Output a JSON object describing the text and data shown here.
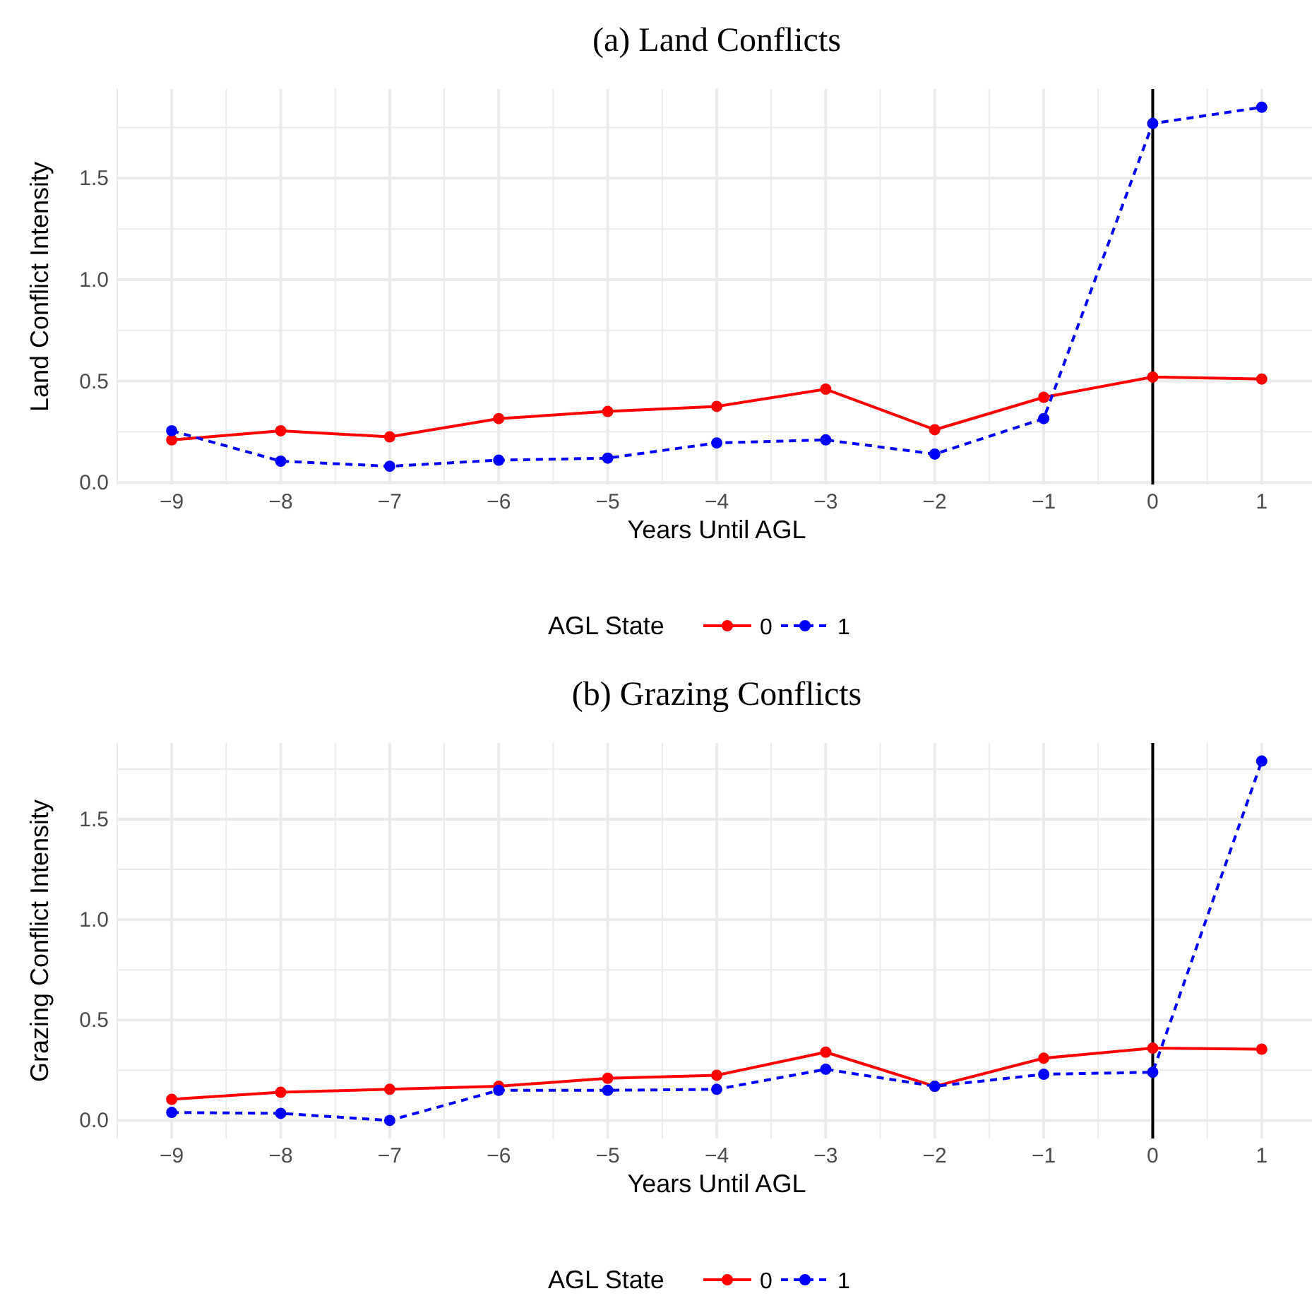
{
  "chart_data": [
    {
      "type": "line",
      "title": "(a) Land Conflicts",
      "xlabel": "Years Until AGL",
      "ylabel": "Land Conflict Intensity",
      "legend_title": "AGL State",
      "legend": "bottom",
      "grid": true,
      "marker": "circle",
      "x": [
        -9,
        -8,
        -7,
        -6,
        -5,
        -4,
        -3,
        -2,
        -1,
        0,
        1
      ],
      "xlim": [
        -9.5,
        1.5
      ],
      "xticks": [
        -9,
        -8,
        -7,
        -6,
        -5,
        -4,
        -3,
        -2,
        -1,
        0,
        1,
        {
          "value": -9.5,
          "label": null
        },
        {
          "value": -8.5,
          "label": null
        },
        {
          "value": -7.5,
          "label": null
        },
        {
          "value": -6.5,
          "label": null
        },
        {
          "value": -5.5,
          "label": null
        },
        {
          "value": -4.5,
          "label": null
        },
        {
          "value": -3.5,
          "label": null
        },
        {
          "value": -2.5,
          "label": null
        },
        {
          "value": -1.5,
          "label": null
        },
        {
          "value": -0.5,
          "label": null
        },
        {
          "value": 0.5,
          "label": null
        }
      ],
      "ylim": [
        -0.01,
        1.94
      ],
      "yticks": [
        {
          "value": 0,
          "label": "0.0"
        },
        {
          "value": 0.5,
          "label": "0.5"
        },
        {
          "value": 1,
          "label": "1.0"
        },
        {
          "value": 1.5,
          "label": "1.5"
        },
        {
          "value": 0.25,
          "label": null
        },
        {
          "value": 0.75,
          "label": null
        },
        {
          "value": 1.25,
          "label": null
        },
        {
          "value": 1.75,
          "label": null
        }
      ],
      "ref_lines": [
        {
          "axis": "x",
          "value": 0,
          "color": "#000000"
        }
      ],
      "series": [
        {
          "name": "0",
          "color": "#ff0000",
          "line_style": "solid",
          "values": [
            0.21,
            0.255,
            0.225,
            0.315,
            0.35,
            0.375,
            0.46,
            0.26,
            0.42,
            0.52,
            0.51
          ]
        },
        {
          "name": "1",
          "color": "#0000ff",
          "line_style": "dashed",
          "values": [
            0.255,
            0.105,
            0.08,
            0.11,
            0.12,
            0.195,
            0.21,
            0.14,
            0.315,
            1.77,
            1.85
          ]
        }
      ]
    },
    {
      "type": "line",
      "title": "(b) Grazing Conflicts",
      "xlabel": "Years Until AGL",
      "ylabel": "Grazing Conflict Intensity",
      "legend_title": "AGL State",
      "legend": "bottom",
      "grid": true,
      "marker": "circle",
      "x": [
        -9,
        -8,
        -7,
        -6,
        -5,
        -4,
        -3,
        -2,
        -1,
        0,
        1
      ],
      "xlim": [
        -9.5,
        1.5
      ],
      "xticks": [
        -9,
        -8,
        -7,
        -6,
        -5,
        -4,
        -3,
        -2,
        -1,
        0,
        1,
        {
          "value": -9.5,
          "label": null
        },
        {
          "value": -8.5,
          "label": null
        },
        {
          "value": -7.5,
          "label": null
        },
        {
          "value": -6.5,
          "label": null
        },
        {
          "value": -5.5,
          "label": null
        },
        {
          "value": -4.5,
          "label": null
        },
        {
          "value": -3.5,
          "label": null
        },
        {
          "value": -2.5,
          "label": null
        },
        {
          "value": -1.5,
          "label": null
        },
        {
          "value": -0.5,
          "label": null
        },
        {
          "value": 0.5,
          "label": null
        }
      ],
      "ylim": [
        -0.09,
        1.88
      ],
      "yticks": [
        {
          "value": 0,
          "label": "0.0"
        },
        {
          "value": 0.5,
          "label": "0.5"
        },
        {
          "value": 1,
          "label": "1.0"
        },
        {
          "value": 1.5,
          "label": "1.5"
        },
        {
          "value": 0.25,
          "label": null
        },
        {
          "value": 0.75,
          "label": null
        },
        {
          "value": 1.25,
          "label": null
        },
        {
          "value": 1.75,
          "label": null
        }
      ],
      "ref_lines": [
        {
          "axis": "x",
          "value": 0,
          "color": "#000000"
        }
      ],
      "series": [
        {
          "name": "0",
          "color": "#ff0000",
          "line_style": "solid",
          "values": [
            0.105,
            0.14,
            0.155,
            0.17,
            0.21,
            0.225,
            0.34,
            0.17,
            0.31,
            0.36,
            0.355
          ]
        },
        {
          "name": "1",
          "color": "#0000ff",
          "line_style": "dashed",
          "values": [
            0.04,
            0.035,
            0.0,
            0.15,
            0.15,
            0.155,
            0.255,
            0.17,
            0.23,
            0.24,
            1.79
          ]
        }
      ]
    }
  ]
}
